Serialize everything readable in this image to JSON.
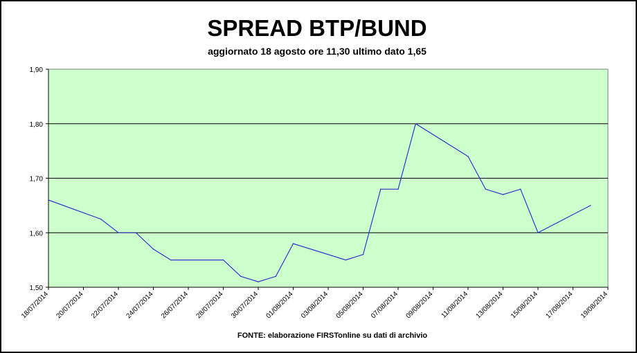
{
  "header": {
    "title": "SPREAD BTP/BUND",
    "subtitle": "aggiornato 18 agosto ore 11,30 ultimo dato 1,65"
  },
  "footer": {
    "source": "FONTE: elaborazione FIRSTonline su dati di archivio"
  },
  "colors": {
    "plot_background": "#ccffcc",
    "line": "#3333cc",
    "grid": "#000000"
  },
  "chart_data": {
    "type": "line",
    "title": "SPREAD BTP/BUND",
    "subtitle": "aggiornato 18 agosto ore 11,30 ultimo dato 1,65",
    "xlabel": "",
    "ylabel": "",
    "ylim": [
      1.5,
      1.9
    ],
    "yticks": [
      1.5,
      1.6,
      1.7,
      1.8,
      1.9
    ],
    "ytick_labels": [
      "1,50",
      "1,60",
      "1,70",
      "1,80",
      "1,90"
    ],
    "xlim": [
      "18/07/2014",
      "19/08/2014"
    ],
    "xtick_labels": [
      "18/07/2014",
      "20/07/2014",
      "22/07/2014",
      "24/07/2014",
      "26/07/2014",
      "28/07/2014",
      "30/07/2014",
      "01/08/2014",
      "03/08/2014",
      "05/08/2014",
      "07/08/2014",
      "09/08/2014",
      "11/08/2014",
      "13/08/2014",
      "15/08/2014",
      "17/08/2014",
      "19/08/2014"
    ],
    "grid": "horizontal",
    "legend": "none",
    "series": [
      {
        "points": [
          {
            "x": "18/07/2014",
            "y": 1.66
          },
          {
            "x": "21/07/2014",
            "y": 1.625
          },
          {
            "x": "22/07/2014",
            "y": 1.6
          },
          {
            "x": "23/07/2014",
            "y": 1.6
          },
          {
            "x": "24/07/2014",
            "y": 1.57
          },
          {
            "x": "25/07/2014",
            "y": 1.55
          },
          {
            "x": "28/07/2014",
            "y": 1.55
          },
          {
            "x": "29/07/2014",
            "y": 1.52
          },
          {
            "x": "30/07/2014",
            "y": 1.51
          },
          {
            "x": "31/07/2014",
            "y": 1.52
          },
          {
            "x": "01/08/2014",
            "y": 1.58
          },
          {
            "x": "04/08/2014",
            "y": 1.55
          },
          {
            "x": "05/08/2014",
            "y": 1.56
          },
          {
            "x": "06/08/2014",
            "y": 1.68
          },
          {
            "x": "07/08/2014",
            "y": 1.68
          },
          {
            "x": "08/08/2014",
            "y": 1.8
          },
          {
            "x": "11/08/2014",
            "y": 1.74
          },
          {
            "x": "12/08/2014",
            "y": 1.68
          },
          {
            "x": "13/08/2014",
            "y": 1.67
          },
          {
            "x": "14/08/2014",
            "y": 1.68
          },
          {
            "x": "15/08/2014",
            "y": 1.6
          },
          {
            "x": "18/08/2014",
            "y": 1.65
          }
        ]
      }
    ]
  }
}
